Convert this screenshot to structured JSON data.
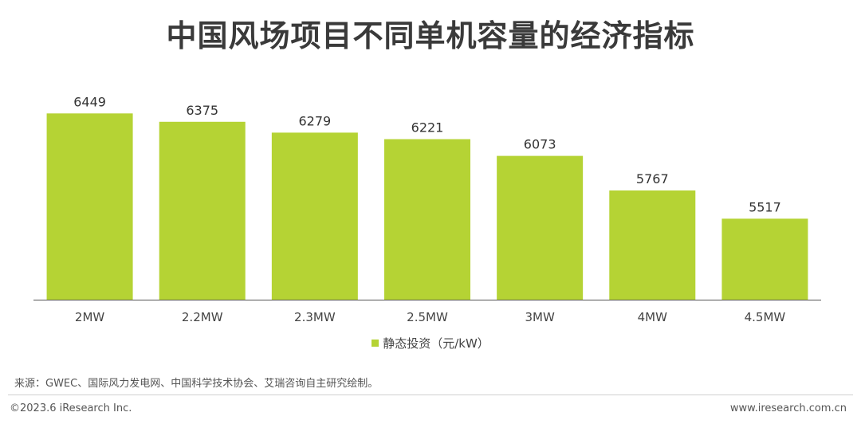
{
  "title": "中国风场项目不同单机容量的经济指标",
  "legend_label": "静态投资（元/kW）",
  "source": "来源：GWEC、国际风力发电网、中国科学技术协会、艾瑞咨询自主研究绘制。",
  "footer_left": "©2023.6 iResearch Inc.",
  "footer_right": "www.iresearch.com.cn",
  "colors": {
    "bar": "#b5d334",
    "axis": "#555555"
  },
  "chart_data": {
    "type": "bar",
    "categories": [
      "2MW",
      "2.2MW",
      "2.3MW",
      "2.5MW",
      "3MW",
      "4MW",
      "4.5MW"
    ],
    "series": [
      {
        "name": "静态投资（元/kW）",
        "values": [
          6449,
          6375,
          6279,
          6221,
          6073,
          5767,
          5517
        ]
      }
    ],
    "ylim": [
      4800,
      6550
    ],
    "grid": false,
    "legend": "bottom"
  }
}
